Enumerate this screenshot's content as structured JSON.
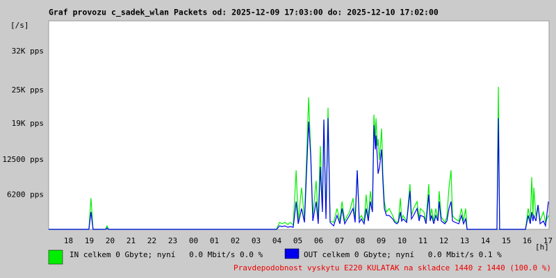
{
  "chart_data": {
    "type": "line",
    "title": "Graf provozu c_sadek_wlan Packets od: 2025-12-09 17:03:00 do: 2025-12-10 17:02:00",
    "y_unit": "[/s]",
    "x_unit": "[h]",
    "note": "Pravdepodobnost vyskytu E220 KULATAK na skladce 1440 z 1440 (100.0 %)",
    "xlim": [
      17.05,
      41.05
    ],
    "ylim": [
      0,
      37500
    ],
    "xticks": [
      18,
      19,
      20,
      21,
      22,
      23,
      {
        "value": 24,
        "label": "00"
      },
      {
        "value": 25,
        "label": "01"
      },
      {
        "value": 26,
        "label": "02"
      },
      {
        "value": 27,
        "label": "03"
      },
      {
        "value": 28,
        "label": "04"
      },
      {
        "value": 29,
        "label": "05"
      },
      {
        "value": 30,
        "label": "06"
      },
      {
        "value": 31,
        "label": "07"
      },
      {
        "value": 32,
        "label": "08"
      },
      {
        "value": 33,
        "label": "09"
      },
      {
        "value": 34,
        "label": "10"
      },
      {
        "value": 35,
        "label": "11"
      },
      {
        "value": 36,
        "label": "12"
      },
      {
        "value": 37,
        "label": "13"
      },
      {
        "value": 38,
        "label": "14"
      },
      {
        "value": 39,
        "label": "15"
      },
      {
        "value": 40,
        "label": "16"
      },
      {
        "value": 41,
        "label": "17"
      }
    ],
    "yticks": [
      {
        "value": 6200,
        "label": "6200 pps"
      },
      {
        "value": 12500,
        "label": "12500 pps"
      },
      {
        "value": 19000,
        "label": "19K pps"
      },
      {
        "value": 25000,
        "label": "25K pps"
      },
      {
        "value": 32000,
        "label": "32K pps"
      }
    ],
    "grid": false,
    "x": [
      17.05,
      18.98,
      19.08,
      19.18,
      19.78,
      19.85,
      19.92,
      27.98,
      28.12,
      28.25,
      28.38,
      28.52,
      28.65,
      28.78,
      28.92,
      29.02,
      29.18,
      29.32,
      29.52,
      29.62,
      29.72,
      29.88,
      29.98,
      30.08,
      30.18,
      30.25,
      30.35,
      30.45,
      30.55,
      30.72,
      30.88,
      31.02,
      31.12,
      31.25,
      31.38,
      31.48,
      31.65,
      31.75,
      31.85,
      31.95,
      32.05,
      32.18,
      32.28,
      32.38,
      32.48,
      32.58,
      32.65,
      32.72,
      32.75,
      32.82,
      32.85,
      32.92,
      33.02,
      33.08,
      33.15,
      33.25,
      33.38,
      33.55,
      33.65,
      33.75,
      33.82,
      33.92,
      33.98,
      34.05,
      34.22,
      34.38,
      34.45,
      34.55,
      34.72,
      34.82,
      34.88,
      35.05,
      35.15,
      35.28,
      35.35,
      35.42,
      35.52,
      35.62,
      35.72,
      35.78,
      35.88,
      36.05,
      36.15,
      36.25,
      36.35,
      36.42,
      36.55,
      36.72,
      36.85,
      36.95,
      37.05,
      37.12,
      38.55,
      38.62,
      38.68,
      39.92,
      40.05,
      40.15,
      40.22,
      40.28,
      40.32,
      40.42,
      40.52,
      40.62,
      40.78,
      40.88,
      41.02
    ],
    "series": [
      {
        "name": "IN celkem 0 Gbyte; nyní   0.0 Mbit/s 0.0 %",
        "color": "#00ee00",
        "values": [
          0,
          0,
          5625,
          0,
          0,
          625,
          0,
          0,
          1250,
          1000,
          1250,
          875,
          1250,
          750,
          10625,
          1500,
          7500,
          1875,
          23750,
          13750,
          2500,
          8750,
          1500,
          15000,
          3750,
          19375,
          2500,
          21875,
          1500,
          1250,
          3750,
          1500,
          5000,
          1500,
          2500,
          3125,
          5625,
          1875,
          10625,
          1875,
          2500,
          1500,
          6250,
          1875,
          6875,
          3750,
          20625,
          16250,
          20000,
          15000,
          16250,
          12500,
          18125,
          10000,
          5000,
          3125,
          3750,
          2500,
          1500,
          1250,
          1500,
          5625,
          1875,
          2500,
          1500,
          8125,
          2500,
          3750,
          5000,
          1875,
          3750,
          3125,
          1500,
          8125,
          1875,
          3750,
          1500,
          3750,
          1875,
          6875,
          2250,
          1250,
          2250,
          7500,
          10625,
          2500,
          1875,
          1500,
          3750,
          1500,
          3750,
          0,
          0,
          25625,
          0,
          0,
          3750,
          1500,
          9375,
          2500,
          7500,
          2250,
          4375,
          1500,
          3125,
          1250,
          2500
        ]
      },
      {
        "name": "OUT celkem 0 Gbyte; nyní   0.0 Mbit/s 0.1 %",
        "color": "#0000ee",
        "values": [
          0,
          0,
          3125,
          0,
          0,
          250,
          0,
          0,
          625,
          500,
          625,
          375,
          500,
          375,
          5000,
          1000,
          3750,
          1250,
          19375,
          13125,
          1500,
          5000,
          1000,
          11250,
          3125,
          19750,
          1875,
          20000,
          1250,
          625,
          2500,
          1000,
          3750,
          1000,
          1875,
          2500,
          3750,
          1250,
          10625,
          1250,
          1875,
          1000,
          3750,
          1500,
          5000,
          3125,
          18750,
          14375,
          16875,
          12500,
          10000,
          11250,
          14375,
          8750,
          3750,
          2500,
          2500,
          1875,
          1250,
          1000,
          1250,
          3125,
          1500,
          1875,
          1250,
          6875,
          1875,
          2500,
          3750,
          1500,
          2500,
          2250,
          1000,
          6250,
          1500,
          2500,
          1000,
          2500,
          1500,
          5000,
          1500,
          1000,
          1500,
          3750,
          5000,
          1500,
          1250,
          1000,
          2500,
          1000,
          1875,
          0,
          0,
          20000,
          0,
          0,
          2500,
          1000,
          3125,
          1500,
          2500,
          1500,
          4375,
          1000,
          1500,
          625,
          5000
        ]
      }
    ]
  }
}
